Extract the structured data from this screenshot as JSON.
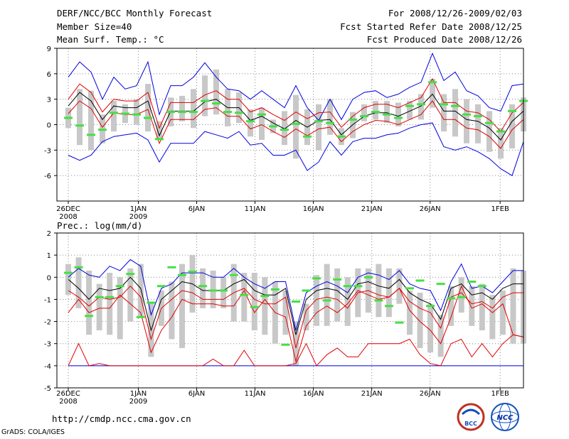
{
  "header": {
    "title": "DERF/NCC/BCC Monthly Forecast",
    "member_size": "Member Size=40",
    "variable": "Mean Surf. Temp.: °C",
    "period": "For 2008/12/26-2009/02/03",
    "fcst_started": "Fcst Started Refer Date 2008/12/25",
    "fcst_produced": "Fcst Produced Date 2008/12/26"
  },
  "footer": {
    "url": "http://cmdp.ncc.cma.gov.cn",
    "grads": "GrADS: COLA/IGES",
    "logo_left_text": "BCC",
    "logo_right_text": "NCC"
  },
  "colors": {
    "box": "#c8c8c8",
    "obs": "#44e044",
    "mean": "#000000",
    "inner": "#e00000",
    "outer": "#0000e0"
  },
  "chart_data": [
    {
      "type": "box-ensemble",
      "title": "Mean Surf. Temp.: °C",
      "ylabel": "°C",
      "ylim": [
        -9,
        9
      ],
      "yticks": [
        -6,
        -3,
        0,
        3,
        6,
        9
      ],
      "grid": true,
      "x_labels": [
        {
          "day": 0,
          "label": "26DEC",
          "sub": "2008"
        },
        {
          "day": 6,
          "label": "1JAN",
          "sub": "2009"
        },
        {
          "day": 11,
          "label": "6JAN",
          "sub": ""
        },
        {
          "day": 16,
          "label": "11JAN",
          "sub": ""
        },
        {
          "day": 21,
          "label": "16JAN",
          "sub": ""
        },
        {
          "day": 26,
          "label": "21JAN",
          "sub": ""
        },
        {
          "day": 31,
          "label": "26JAN",
          "sub": ""
        },
        {
          "day": 37,
          "label": "1FEB",
          "sub": ""
        }
      ],
      "days": 40,
      "series": [
        {
          "name": "ensemble-mean",
          "values": [
            2.2,
            3.8,
            2.8,
            0.6,
            2.2,
            2.0,
            2.0,
            2.8,
            -1.3,
            1.6,
            1.6,
            1.6,
            2.7,
            3.0,
            2.0,
            2.0,
            0.5,
            1.0,
            0.2,
            -0.5,
            0.5,
            -0.3,
            0.5,
            0.6,
            -1.2,
            0.0,
            1.0,
            1.4,
            1.4,
            1.0,
            1.6,
            2.2,
            3.6,
            1.6,
            1.6,
            0.6,
            0.4,
            -0.4,
            -1.8,
            0.4,
            1.6
          ]
        },
        {
          "name": "upper-inner",
          "values": [
            3.0,
            4.8,
            3.8,
            1.5,
            3.0,
            2.8,
            2.8,
            3.8,
            -0.4,
            2.6,
            2.6,
            2.6,
            3.5,
            4.0,
            3.0,
            3.0,
            1.5,
            2.0,
            1.2,
            0.5,
            1.5,
            0.7,
            1.4,
            1.5,
            -0.3,
            1.0,
            2.0,
            2.4,
            2.4,
            2.0,
            2.6,
            3.2,
            5.4,
            2.6,
            2.6,
            1.6,
            1.4,
            0.6,
            -0.8,
            1.4,
            2.6
          ]
        },
        {
          "name": "lower-inner",
          "values": [
            1.3,
            2.8,
            1.9,
            -0.3,
            1.4,
            1.2,
            1.2,
            1.8,
            -2.2,
            0.6,
            0.6,
            0.6,
            1.8,
            2.0,
            1.0,
            1.0,
            -0.5,
            0.0,
            -0.8,
            -1.5,
            -0.5,
            -1.3,
            -0.5,
            -0.3,
            -2.0,
            -0.8,
            0.0,
            0.5,
            0.4,
            0.0,
            0.6,
            1.2,
            2.8,
            0.6,
            0.6,
            -0.4,
            -0.6,
            -1.4,
            -2.8,
            -0.6,
            0.6
          ]
        },
        {
          "name": "max",
          "values": [
            5.6,
            7.4,
            6.2,
            3.0,
            5.6,
            4.2,
            4.6,
            7.4,
            1.2,
            4.6,
            4.6,
            5.6,
            7.3,
            5.6,
            4.2,
            4.0,
            3.0,
            4.0,
            3.0,
            2.0,
            4.6,
            2.0,
            0.5,
            3.0,
            0.6,
            3.0,
            3.8,
            4.0,
            3.2,
            3.6,
            4.4,
            5.0,
            8.4,
            5.2,
            6.2,
            4.0,
            3.4,
            2.0,
            1.6,
            4.6,
            4.8,
            2.9
          ]
        },
        {
          "name": "min",
          "values": [
            -3.6,
            -4.2,
            -3.6,
            -2.0,
            -1.4,
            -1.2,
            -1.0,
            -1.8,
            -4.4,
            -2.2,
            -2.2,
            -2.2,
            -0.8,
            -1.2,
            -1.6,
            -0.8,
            -2.4,
            -2.2,
            -3.6,
            -3.6,
            -3.0,
            -5.4,
            -4.4,
            -2.0,
            -3.6,
            -2.0,
            -1.6,
            -1.6,
            -1.2,
            -1.0,
            -0.4,
            0.0,
            0.2,
            -2.6,
            -3.0,
            -2.6,
            -3.2,
            -4.0,
            -5.2,
            -6.0,
            -2.0,
            -2.6
          ]
        },
        {
          "name": "box-top",
          "values": [
            2.0,
            4.2,
            4.0,
            1.2,
            2.8,
            2.4,
            3.0,
            4.8,
            0.4,
            3.2,
            3.4,
            4.2,
            5.8,
            6.5,
            4.2,
            3.8,
            1.8,
            2.0,
            0.6,
            1.6,
            3.5,
            1.8,
            2.4,
            3.0,
            -0.4,
            1.5,
            2.4,
            2.8,
            2.8,
            2.6,
            2.8,
            3.6,
            5.4,
            3.6,
            4.2,
            3.0,
            2.4,
            1.6,
            -0.4,
            2.4,
            3.2
          ]
        },
        {
          "name": "box-bottom",
          "values": [
            -0.4,
            -2.4,
            -3.0,
            -2.2,
            -0.8,
            0.2,
            0.0,
            -0.8,
            -1.8,
            -0.2,
            0.4,
            -0.4,
            1.0,
            1.2,
            -0.2,
            0.2,
            -1.4,
            -1.8,
            -1.0,
            -2.4,
            -4.0,
            -2.4,
            -3.0,
            -1.2,
            -2.4,
            -1.6,
            0.4,
            0.6,
            0.2,
            -0.2,
            0.6,
            0.6,
            2.0,
            -0.8,
            -1.4,
            -2.2,
            -2.2,
            -3.2,
            -4.0,
            -2.8,
            -0.8
          ]
        },
        {
          "name": "observed",
          "values": [
            0.8,
            -0.1,
            -1.2,
            -0.6,
            1.4,
            1.3,
            1.2,
            0.8,
            -1.7,
            1.5,
            1.5,
            1.5,
            2.8,
            2.5,
            1.5,
            1.4,
            0.4,
            1.2,
            -0.2,
            -0.6,
            0.1,
            -1.4,
            0.4,
            0.2,
            -1.4,
            0.6,
            1.0,
            1.5,
            1.2,
            0.8,
            2.2,
            2.4,
            5.0,
            2.4,
            2.2,
            1.2,
            1.0,
            0.2,
            -0.8,
            1.6,
            2.8,
            0.7
          ]
        }
      ]
    },
    {
      "type": "box-ensemble",
      "title": "Prec.: log(mm/d)",
      "ylabel": "log(mm/d)",
      "ylim": [
        -5,
        2
      ],
      "yticks": [
        -5,
        -4,
        -3,
        -2,
        -1,
        0,
        1,
        2
      ],
      "grid": true,
      "x_labels": [
        {
          "day": 0,
          "label": "26DEC",
          "sub": "2008"
        },
        {
          "day": 6,
          "label": "1JAN",
          "sub": "2009"
        },
        {
          "day": 11,
          "label": "6JAN",
          "sub": ""
        },
        {
          "day": 16,
          "label": "11JAN",
          "sub": ""
        },
        {
          "day": 21,
          "label": "16JAN",
          "sub": ""
        },
        {
          "day": 26,
          "label": "21JAN",
          "sub": ""
        },
        {
          "day": 31,
          "label": "26JAN",
          "sub": ""
        },
        {
          "day": 37,
          "label": "1FEB",
          "sub": ""
        }
      ],
      "days": 40,
      "series": [
        {
          "name": "ensemble-mean",
          "values": [
            -0.1,
            -0.5,
            -1.0,
            -0.5,
            -0.6,
            -0.5,
            0.0,
            -0.5,
            -2.4,
            -1.0,
            -0.6,
            -0.2,
            -0.3,
            -0.6,
            -0.6,
            -0.6,
            -0.3,
            -0.1,
            -0.6,
            -0.8,
            -0.8,
            -0.5,
            -2.6,
            -1.0,
            -0.6,
            -0.5,
            -0.6,
            -1.0,
            -0.3,
            -0.2,
            -0.4,
            -0.5,
            -0.1,
            -0.7,
            -1.0,
            -1.2,
            -1.9,
            -0.5,
            -0.3,
            -0.8,
            -0.7,
            -1.0,
            -0.5,
            -0.3,
            -0.3
          ]
        },
        {
          "name": "upper-inner",
          "values": [
            -0.6,
            -0.9,
            -1.3,
            -0.9,
            -1.0,
            -0.9,
            -0.4,
            -0.9,
            -2.8,
            -1.4,
            -1.0,
            -0.6,
            -0.7,
            -1.0,
            -1.0,
            -1.0,
            -0.7,
            -0.5,
            -1.0,
            -1.2,
            -1.2,
            -0.9,
            -3.2,
            -1.5,
            -1.0,
            -0.9,
            -1.0,
            -1.4,
            -0.7,
            -0.6,
            -0.8,
            -0.9,
            -0.5,
            -1.1,
            -1.4,
            -1.6,
            -2.3,
            -0.9,
            -0.7,
            -1.2,
            -1.1,
            -1.4,
            -0.9,
            -0.7,
            -0.7
          ]
        },
        {
          "name": "lower-inner",
          "values": [
            -1.6,
            -1.0,
            -1.6,
            -1.4,
            -1.4,
            -0.8,
            -1.2,
            -1.6,
            -3.4,
            -2.4,
            -1.8,
            -1.0,
            -1.2,
            -1.2,
            -1.2,
            -1.3,
            -1.3,
            -0.6,
            -1.6,
            -1.0,
            -1.6,
            -1.8,
            -3.8,
            -2.2,
            -1.6,
            -1.3,
            -1.6,
            -1.2,
            -0.6,
            -0.8,
            -1.0,
            -0.9,
            -0.5,
            -1.5,
            -2.0,
            -2.4,
            -3.0,
            -1.8,
            -0.4,
            -1.4,
            -1.2,
            -1.6,
            -1.2,
            -2.6,
            -2.7
          ]
        },
        {
          "name": "lower-outer",
          "values": [
            -4.0,
            -3.0,
            -4.0,
            -3.9,
            -4.0,
            -4.0,
            -4.0,
            -4.0,
            -4.0,
            -4.0,
            -4.0,
            -4.0,
            -4.0,
            -4.0,
            -3.7,
            -4.0,
            -4.0,
            -3.3,
            -4.0,
            -4.0,
            -4.0,
            -4.0,
            -3.9,
            -3.0,
            -4.0,
            -3.5,
            -3.2,
            -3.6,
            -3.6,
            -3.0,
            -3.0,
            -3.0,
            -3.0,
            -2.8,
            -3.5,
            -3.9,
            -4.0,
            -3.0,
            -2.8,
            -3.6,
            -3.0,
            -3.6,
            -3.0,
            -2.6,
            -2.7
          ]
        },
        {
          "name": "max",
          "values": [
            0.0,
            0.4,
            0.1,
            0.0,
            0.5,
            0.3,
            0.8,
            0.5,
            -1.7,
            -0.5,
            -0.3,
            0.2,
            0.2,
            0.2,
            0.0,
            0.0,
            0.4,
            0.0,
            -0.3,
            -0.5,
            -0.2,
            -0.2,
            -2.4,
            -0.7,
            -0.4,
            -0.2,
            -0.4,
            -0.7,
            0.0,
            0.2,
            0.1,
            -0.1,
            0.3,
            -0.3,
            -0.5,
            -0.6,
            -1.5,
            -0.2,
            0.6,
            -0.5,
            -0.4,
            -0.7,
            -0.2,
            0.3,
            0.3
          ]
        },
        {
          "name": "min",
          "values": [
            -4.0,
            -4.0,
            -4.0,
            -4.0,
            -4.0,
            -4.0,
            -4.0,
            -4.0,
            -4.0,
            -4.0,
            -4.0,
            -4.0,
            -4.0,
            -4.0,
            -4.0,
            -4.0,
            -4.0,
            -4.0,
            -4.0,
            -4.0,
            -4.0,
            -4.0,
            -4.0,
            -4.0,
            -4.0,
            -4.0,
            -4.0,
            -4.0,
            -4.0,
            -4.0,
            -4.0,
            -4.0,
            -4.0,
            -4.0,
            -4.0,
            -4.0,
            -4.0,
            -4.0,
            -4.0,
            -4.0,
            -4.0,
            -4.0,
            -4.0,
            -4.0,
            -4.0
          ]
        },
        {
          "name": "box-top",
          "values": [
            0.6,
            0.9,
            0.3,
            -0.3,
            0.2,
            0.0,
            0.4,
            0.6,
            -1.1,
            -0.6,
            -0.2,
            0.6,
            1.0,
            0.4,
            0.3,
            0.0,
            0.6,
            0.2,
            0.2,
            0.0,
            -0.2,
            -0.6,
            -2.0,
            -1.2,
            0.1,
            0.6,
            0.4,
            0.0,
            0.4,
            0.4,
            0.6,
            0.4,
            0.4,
            -0.6,
            -0.7,
            -1.2,
            -1.7,
            -0.4,
            0.0,
            -0.4,
            -0.3,
            -0.8,
            -0.6,
            0.4,
            0.3
          ]
        },
        {
          "name": "box-bottom",
          "values": [
            -0.8,
            -1.4,
            -2.6,
            -2.4,
            -2.6,
            -2.8,
            -2.0,
            -1.8,
            -3.6,
            -2.2,
            -2.8,
            -3.2,
            -1.6,
            -1.4,
            -1.4,
            -1.4,
            -2.0,
            -2.0,
            -2.4,
            -2.6,
            -3.0,
            -2.6,
            -4.0,
            -2.4,
            -2.2,
            -2.2,
            -2.0,
            -2.2,
            -1.8,
            -1.6,
            -1.8,
            -1.8,
            -1.2,
            -2.6,
            -3.2,
            -3.4,
            -3.6,
            -2.2,
            -1.6,
            -2.2,
            -2.4,
            -2.8,
            -2.6,
            -3.0,
            -3.0
          ]
        },
        {
          "name": "observed",
          "values": [
            0.2,
            0.45,
            -1.75,
            -0.9,
            -0.9,
            -0.4,
            0.15,
            -1.8,
            -1.15,
            -0.4,
            0.45,
            0.1,
            0.25,
            -0.4,
            -0.6,
            -0.6,
            0.1,
            -0.8,
            -1.35,
            -0.85,
            -0.55,
            -3.05,
            -1.1,
            -0.6,
            -0.05,
            -1.05,
            -0.1,
            -0.4,
            -0.4,
            0.0,
            -1.05,
            -1.3,
            -2.05,
            -0.5,
            -0.15,
            -1.3,
            -0.3,
            -0.95,
            -0.9,
            -0.2,
            -0.4
          ]
        }
      ]
    }
  ]
}
